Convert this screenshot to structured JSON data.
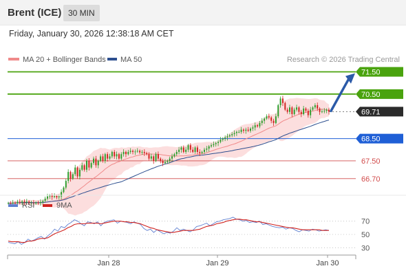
{
  "header": {
    "title": "Brent (ICE)",
    "timeframe": "30 MIN"
  },
  "datetime": "Friday, January 30, 2026 12:38:18 AM CET",
  "legend": {
    "ma": "MA 20 + Bollinger Bands",
    "ma50": "MA 50",
    "credit": "Research © 2026 Trading Central"
  },
  "rsi_legend": {
    "rsi": "RSI",
    "ma": "9MA"
  },
  "colors": {
    "bull": "#2e9e2e",
    "bear": "#d0231f",
    "resistance": "#4aa30e",
    "support": "#1f5fd6",
    "pivot_low": "#d14b4b",
    "ma20": "#f08a8a",
    "ma50": "#2d4f8f",
    "band": "#fbd3d3",
    "rsi": "#5f7fd0",
    "rsi_ma": "#d0231f",
    "arrow": "#2b5aa8",
    "current": "#2b2b2b"
  },
  "chart_data": [
    {
      "type": "candlestick",
      "ylim": [
        66.2,
        71.7
      ],
      "x_ticks": [
        "Jan 28",
        "Jan 29",
        "Jan 30"
      ],
      "current_price": {
        "label": "69.71",
        "value": 69.71
      },
      "levels": [
        {
          "label": "71.50",
          "value": 71.5,
          "kind": "resistance"
        },
        {
          "label": "70.50",
          "value": 70.5,
          "kind": "resistance"
        },
        {
          "label": "68.50",
          "value": 68.5,
          "kind": "support"
        },
        {
          "label": "67.50",
          "value": 67.5,
          "kind": "support-minor"
        },
        {
          "label": "66.70",
          "value": 66.7,
          "kind": "support-minor"
        }
      ],
      "close": [
        65.6,
        65.58,
        65.62,
        65.6,
        65.66,
        65.63,
        65.68,
        65.64,
        65.67,
        65.6,
        65.62,
        65.58,
        65.62,
        65.6,
        65.65,
        65.7,
        65.8,
        65.9,
        65.95,
        65.88,
        65.92,
        65.86,
        65.9,
        66.1,
        66.3,
        66.6,
        67.0,
        66.7,
        66.9,
        67.2,
        66.8,
        67.1,
        67.3,
        67.1,
        67.5,
        67.2,
        67.4,
        67.6,
        67.3,
        67.5,
        67.7,
        67.5,
        67.8,
        67.6,
        67.7,
        67.9,
        67.7,
        67.8,
        67.6,
        67.8,
        67.9,
        67.8,
        67.9,
        67.95,
        67.9,
        67.92,
        67.95,
        67.88,
        67.9,
        67.85,
        67.8,
        67.6,
        67.7,
        67.5,
        67.8,
        67.6,
        67.5,
        67.4,
        67.45,
        67.5,
        67.6,
        67.7,
        67.8,
        67.9,
        68.0,
        68.1,
        67.9,
        68.0,
        68.2,
        68.0,
        67.9,
        68.1,
        67.9,
        67.85,
        67.9,
        68.0,
        68.05,
        68.15,
        68.2,
        68.25,
        68.3,
        68.35,
        68.45,
        68.5,
        68.55,
        68.6,
        68.65,
        68.7,
        68.75,
        68.8,
        68.8,
        68.9,
        68.85,
        68.9,
        68.85,
        68.95,
        69.0,
        69.1,
        69.05,
        69.2,
        69.3,
        69.4,
        69.5,
        69.45,
        69.3,
        69.2,
        69.5,
        70.0,
        70.3,
        70.1,
        69.8,
        69.7,
        69.9,
        69.6,
        69.8,
        69.9,
        69.7,
        69.6,
        69.85,
        69.75,
        69.55,
        69.8,
        69.9,
        70.0,
        69.85,
        69.7,
        69.72,
        69.75,
        69.8,
        69.71
      ]
    },
    {
      "type": "line",
      "title": "RSI",
      "ylim": [
        20,
        80
      ],
      "y_ticks": [
        70,
        50,
        30
      ],
      "series": [
        {
          "name": "RSI",
          "values": [
            38,
            37,
            36,
            39,
            35,
            38,
            43,
            40,
            42,
            45,
            47,
            43,
            48,
            52,
            58,
            55,
            62,
            60,
            65,
            68,
            72,
            70,
            66,
            63,
            69,
            68,
            66,
            69,
            63,
            68,
            70,
            71,
            72,
            67,
            70,
            69,
            68,
            66,
            69,
            67,
            65,
            59,
            56,
            58,
            53,
            57,
            54,
            51,
            53,
            52,
            55,
            60,
            56,
            58,
            56,
            54,
            57,
            62,
            63,
            65,
            67,
            63,
            66,
            69,
            70,
            72,
            73,
            74,
            76,
            73,
            72,
            70,
            71,
            68,
            69,
            68,
            70,
            65,
            66,
            64,
            62,
            61,
            60,
            61,
            58,
            60,
            59,
            56,
            54,
            57,
            56,
            55,
            58,
            57,
            55,
            56,
            57,
            56
          ]
        },
        {
          "name": "9MA",
          "values": [
            40,
            39,
            39,
            39,
            38,
            38,
            40,
            40,
            41,
            43,
            44,
            44,
            45,
            48,
            51,
            53,
            55,
            57,
            60,
            62,
            65,
            66,
            66,
            66,
            67,
            67,
            67,
            67,
            66,
            67,
            68,
            69,
            70,
            70,
            70,
            69,
            69,
            68,
            68,
            67,
            66,
            64,
            62,
            60,
            59,
            57,
            56,
            55,
            54,
            53,
            53,
            54,
            55,
            56,
            56,
            56,
            56,
            57,
            58,
            60,
            62,
            63,
            64,
            66,
            67,
            68,
            70,
            71,
            72,
            73,
            73,
            72,
            72,
            71,
            70,
            69,
            69,
            68,
            67,
            66,
            65,
            64,
            63,
            62,
            61,
            60,
            60,
            59,
            58,
            57,
            57,
            57,
            57,
            57,
            57,
            56,
            56,
            56
          ]
        }
      ]
    }
  ]
}
